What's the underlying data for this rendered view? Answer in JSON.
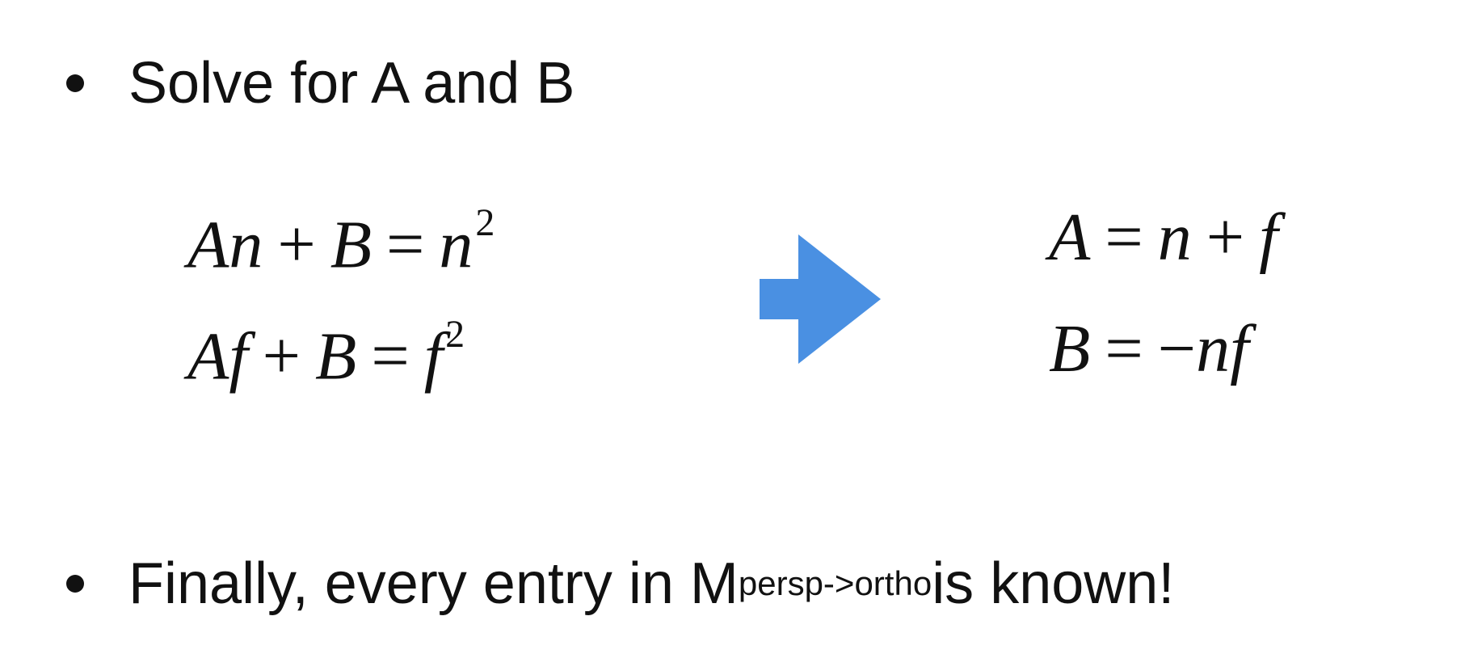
{
  "bullets": {
    "first": "Solve for A and B",
    "second": {
      "prefix": "Finally, every entry in M",
      "subscript": "persp->ortho",
      "suffix": " is known!"
    }
  },
  "equations": {
    "left_1": {
      "a": "A",
      "b": "n",
      "plus": "+",
      "c": "B",
      "equals": "=",
      "rhs": "n",
      "exp": "2"
    },
    "left_2": {
      "a": "A",
      "b": "f",
      "plus": "+",
      "c": "B",
      "equals": "=",
      "rhs": "f",
      "exp": "2"
    },
    "right_1": {
      "a": "A",
      "equals": "=",
      "n": "n",
      "plus": "+",
      "f": "f"
    },
    "right_2": {
      "b": "B",
      "equals": "=",
      "minus": "−",
      "n": "n",
      "f": "f"
    }
  },
  "icon": {
    "arrow": "right-arrow-icon",
    "arrow_color": "#4a90e2"
  }
}
